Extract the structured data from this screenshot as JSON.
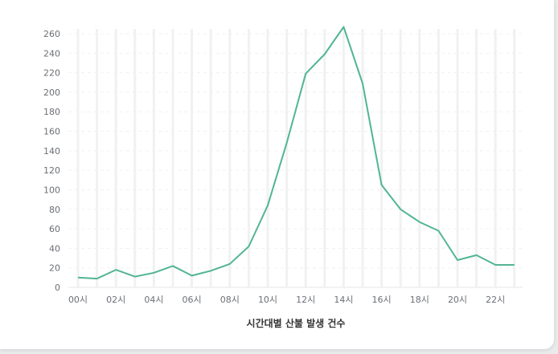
{
  "chart_data": {
    "type": "line",
    "title": "",
    "xlabel": "시간대별 산불 발생 건수",
    "ylabel": "",
    "categories": [
      "00시",
      "01시",
      "02시",
      "03시",
      "04시",
      "05시",
      "06시",
      "07시",
      "08시",
      "09시",
      "10시",
      "11시",
      "12시",
      "13시",
      "14시",
      "15시",
      "16시",
      "17시",
      "18시",
      "19시",
      "20시",
      "21시",
      "22시",
      "23시"
    ],
    "tick_labels": [
      "00시",
      "02시",
      "04시",
      "06시",
      "08시",
      "10시",
      "12시",
      "14시",
      "16시",
      "18시",
      "20시",
      "22시"
    ],
    "series": [
      {
        "values": [
          10,
          9,
          18,
          11,
          15,
          22,
          12,
          17,
          24,
          42,
          84,
          148,
          219,
          239,
          267,
          209,
          105,
          80,
          67,
          58,
          28,
          33,
          23,
          23
        ]
      }
    ],
    "ylim": [
      0,
      260
    ],
    "yticks": [
      0,
      20,
      40,
      60,
      80,
      100,
      120,
      140,
      160,
      180,
      200,
      220,
      240,
      260
    ],
    "grid": true,
    "line_color": "#52b592",
    "grid_color": "#f0f1f3"
  }
}
